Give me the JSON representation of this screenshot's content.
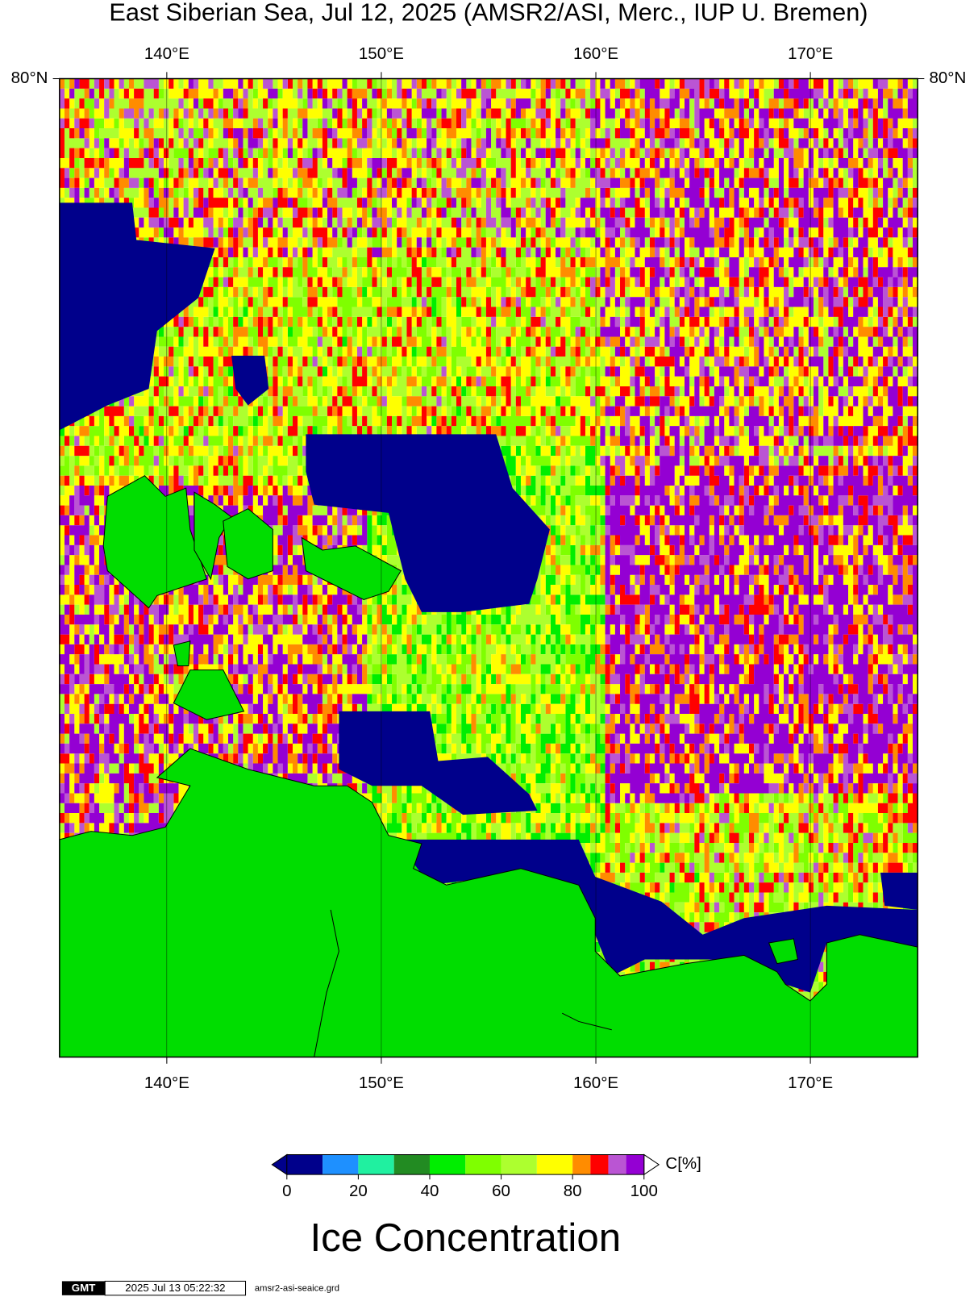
{
  "title": "East Siberian Sea, Jul 12, 2025 (AMSR2/ASI, Merc., IUP U. Bremen)",
  "map": {
    "lon_range": [
      135,
      175
    ],
    "lon_ticks": [
      {
        "value": 140,
        "label": "140°E"
      },
      {
        "value": 150,
        "label": "150°E"
      },
      {
        "value": 160,
        "label": "160°E"
      },
      {
        "value": 170,
        "label": "170°E"
      }
    ],
    "lat_ticks": [
      {
        "value": 80,
        "label": "80°N"
      }
    ]
  },
  "colorbar": {
    "label": "Ice Concentration",
    "unit": "C[%]",
    "range": [
      0,
      100
    ],
    "ticks": [
      0,
      20,
      40,
      60,
      80,
      100
    ],
    "bounds": [
      0,
      10,
      20,
      30,
      40,
      50,
      60,
      70,
      80,
      85,
      90,
      95,
      100
    ],
    "colors": [
      "#00008b",
      "#1e90ff",
      "#20f0a0",
      "#228b22",
      "#00ee00",
      "#7fff00",
      "#adff2f",
      "#ffff00",
      "#ff8c00",
      "#ff0000",
      "#ba55d3",
      "#9400d3"
    ]
  },
  "footer": {
    "logo": "GMT",
    "timestamp": "2025 Jul 13 05:22:32",
    "file": "amsr2-asi-seaice.grd"
  }
}
